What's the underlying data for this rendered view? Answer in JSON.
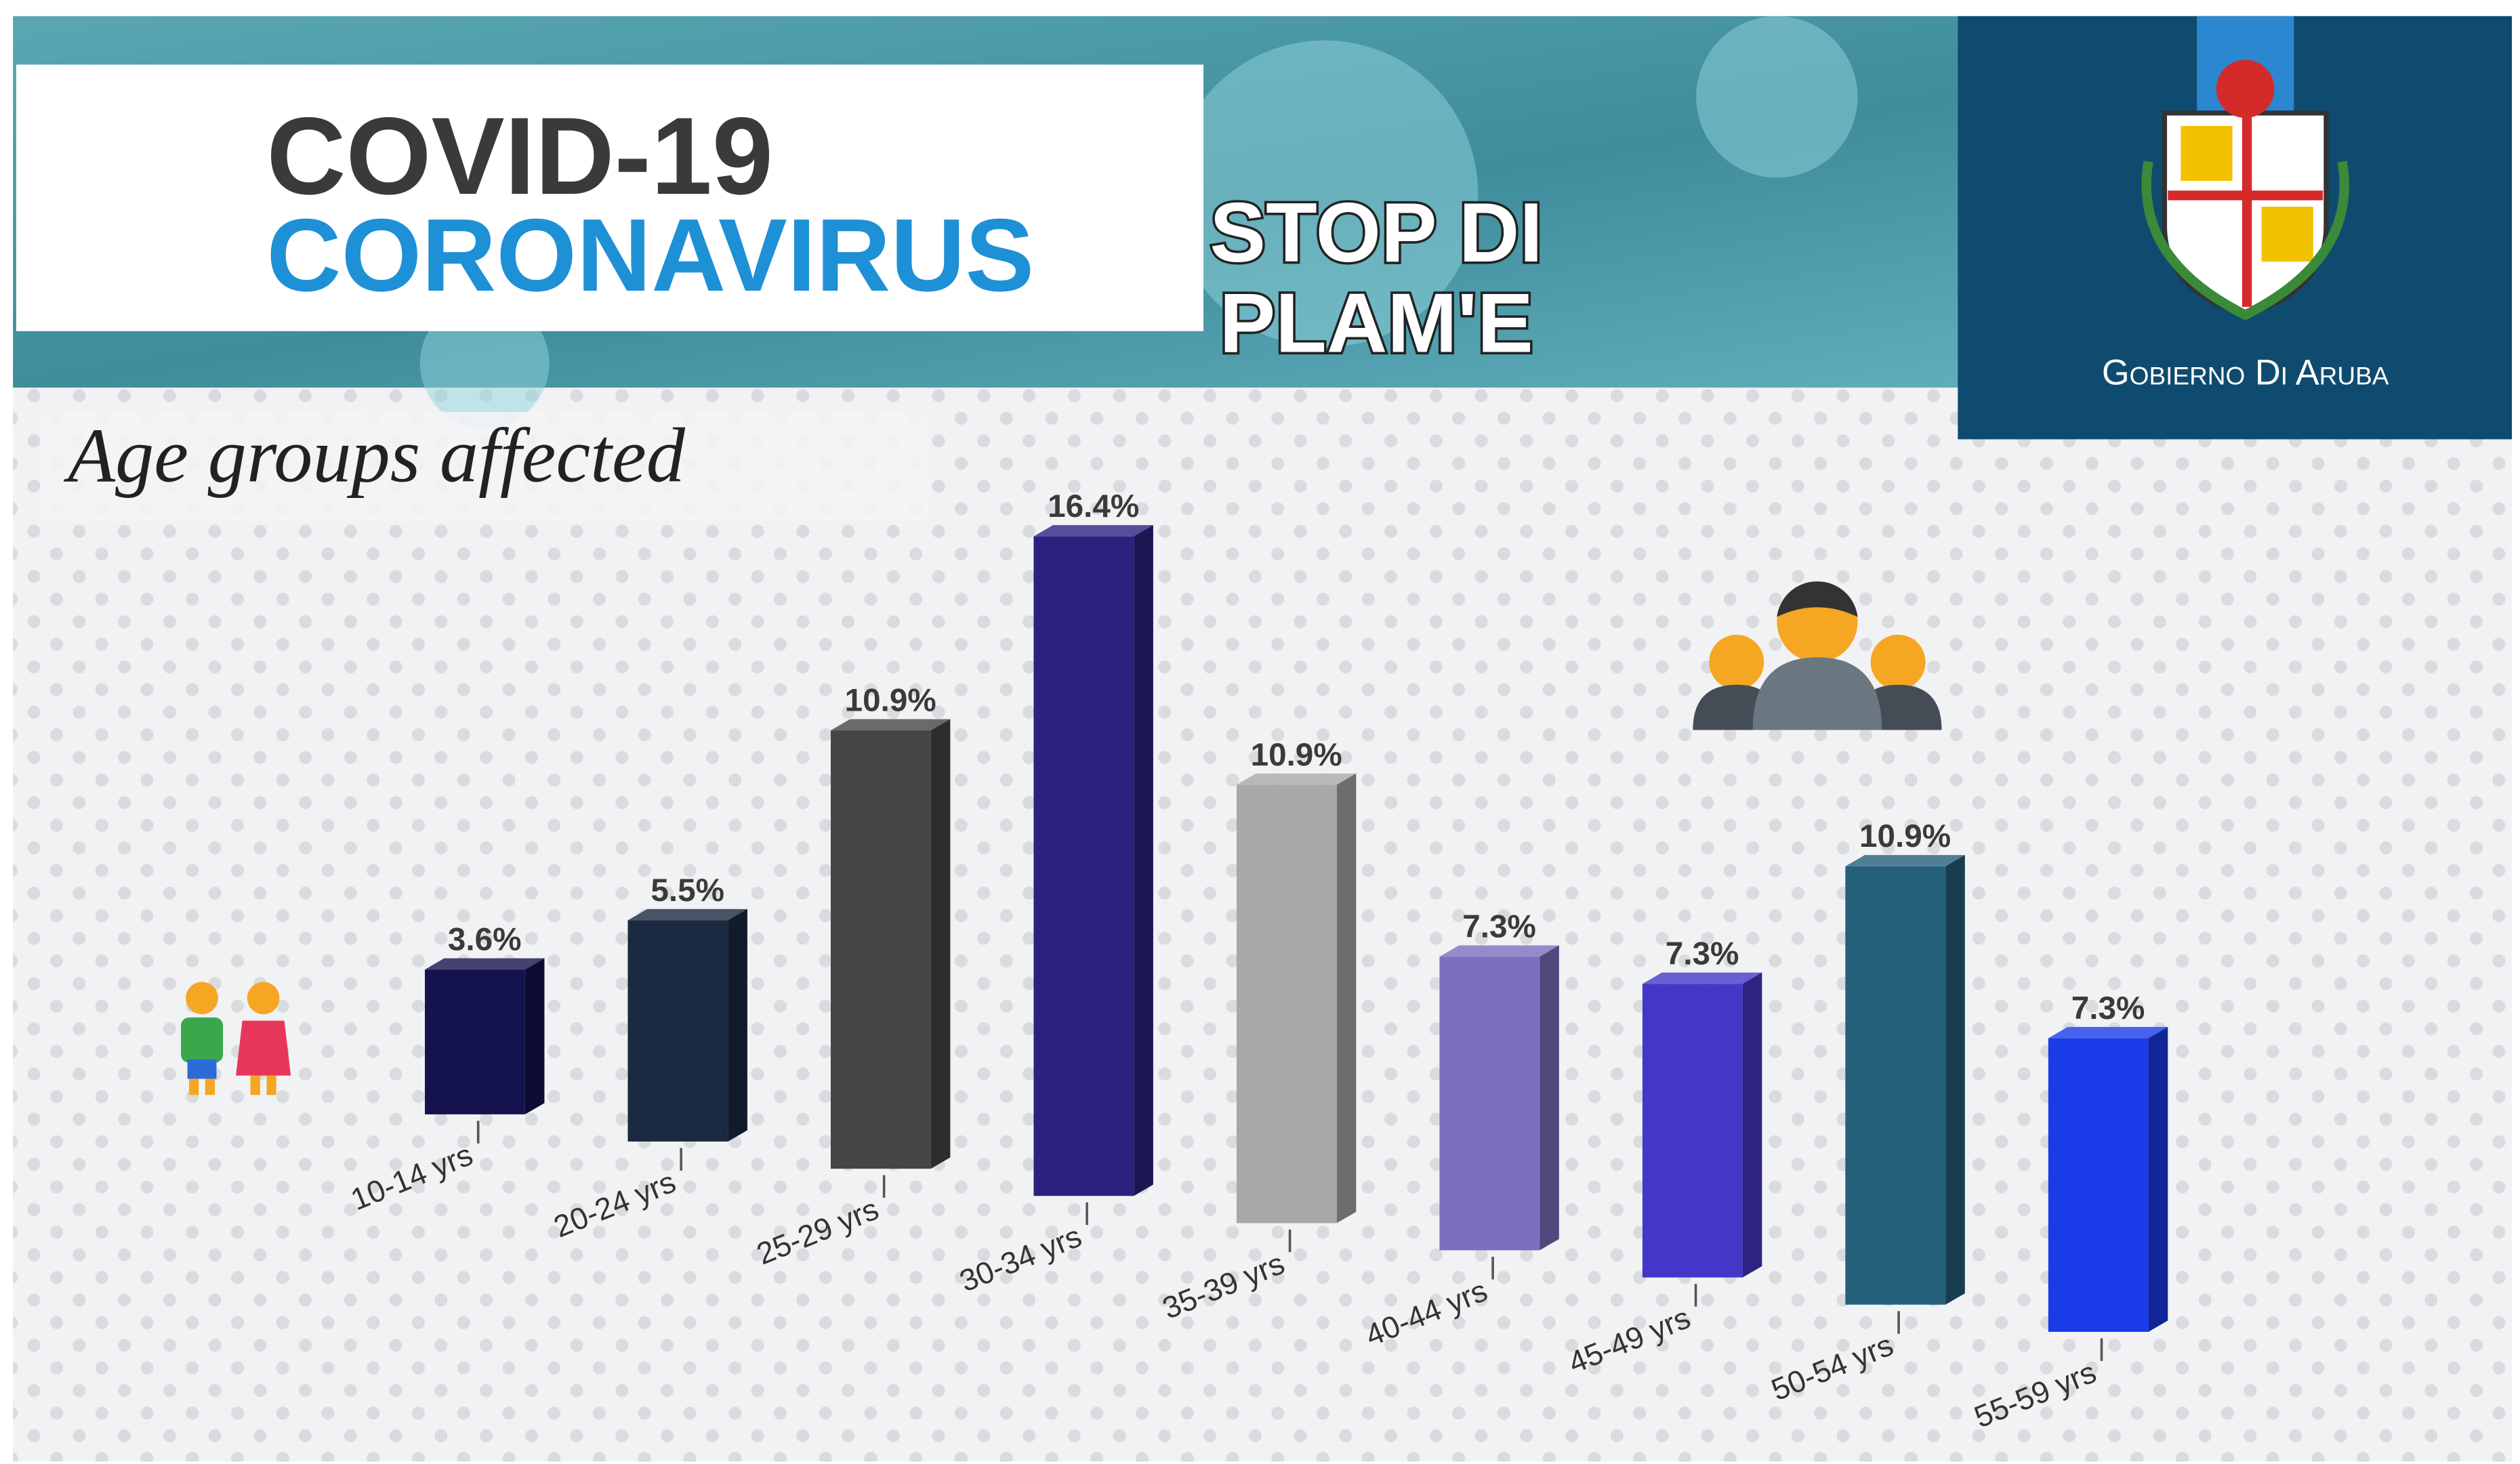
{
  "header": {
    "line1": "COVID-19",
    "line2": "CORONAVIRUS",
    "slogan": [
      "STOP DI",
      "PLAM'E"
    ],
    "org": "Gobierno Di Aruba"
  },
  "chart_data": {
    "type": "bar",
    "title": "Age groups affected",
    "categories": [
      "10-14 yrs",
      "20-24 yrs",
      "25-29 yrs",
      "30-34 yrs",
      "35-39 yrs",
      "40-44 yrs",
      "45-49 yrs",
      "50-54 yrs",
      "55-59 yrs"
    ],
    "values": [
      3.6,
      5.5,
      10.9,
      16.4,
      10.9,
      7.3,
      7.3,
      10.9,
      7.3
    ],
    "value_labels": [
      "3.6%",
      "5.5%",
      "10.9%",
      "16.4%",
      "10.9%",
      "7.3%",
      "7.3%",
      "10.9%",
      "7.3%"
    ],
    "colors": [
      "#14134e",
      "#1b2a40",
      "#454545",
      "#2b2280",
      "#a8a8a8",
      "#7b6fc0",
      "#4437c8",
      "#24607a",
      "#1a3be8"
    ]
  }
}
